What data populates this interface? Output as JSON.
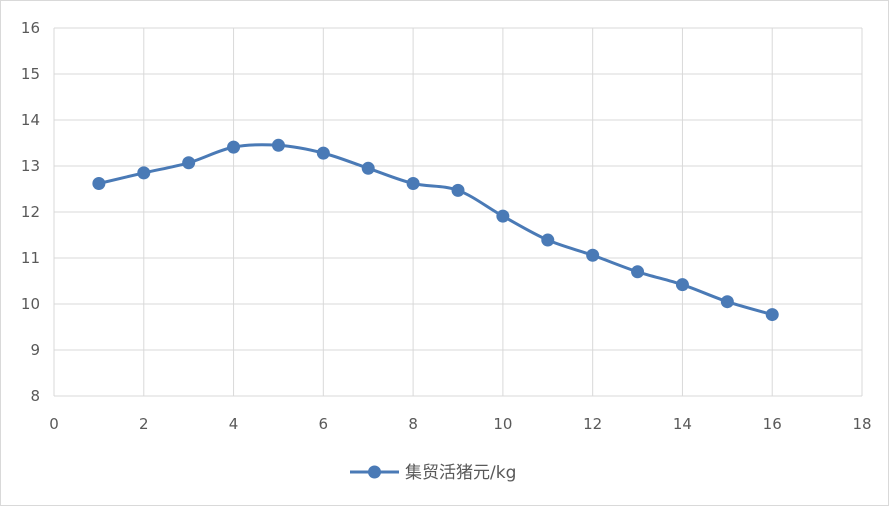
{
  "chart_data": {
    "type": "line",
    "title": "",
    "xlabel": "",
    "ylabel": "",
    "xlim": [
      0,
      18
    ],
    "ylim": [
      8,
      16
    ],
    "x_ticks": [
      0,
      2,
      4,
      6,
      8,
      10,
      12,
      14,
      16,
      18
    ],
    "y_ticks": [
      8,
      9,
      10,
      11,
      12,
      13,
      14,
      15,
      16
    ],
    "grid": true,
    "smooth": true,
    "legend_position": "bottom",
    "series": [
      {
        "name": "集贸活猪元/kg",
        "color": "#4a7ab6",
        "marker": "circle",
        "x": [
          1,
          2,
          3,
          4,
          5,
          6,
          7,
          8,
          9,
          10,
          11,
          12,
          13,
          14,
          15,
          16
        ],
        "y": [
          12.62,
          12.85,
          13.07,
          13.41,
          13.45,
          13.28,
          12.95,
          12.62,
          12.47,
          11.91,
          11.39,
          11.06,
          10.7,
          10.42,
          10.05,
          9.77
        ]
      }
    ]
  }
}
